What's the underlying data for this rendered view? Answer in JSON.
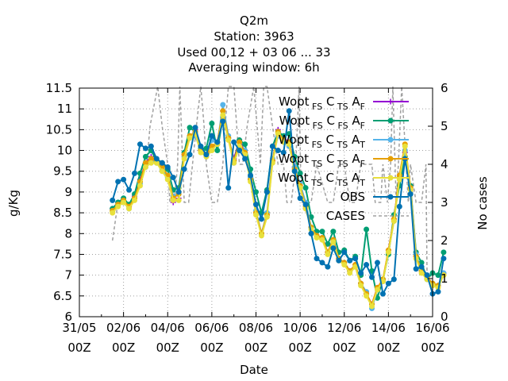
{
  "chart_data": {
    "type": "line",
    "title_lines": [
      "Q2m",
      "Station:     3963",
      "Used  00,12  + 03 06 ... 33",
      "Averaging window:  6h"
    ],
    "xlabel": "Date",
    "ylabel": "g/Kg",
    "y2label": "No cases",
    "xlim": [
      "2020-05-31 00:00",
      "2020-06-16 00:00"
    ],
    "ylim": [
      6,
      11.5
    ],
    "y2lim": [
      0,
      6
    ],
    "grid": true,
    "legend_position": "top-right",
    "x_ticks": [
      {
        "day": "31/05",
        "hour": "00Z"
      },
      {
        "day": "02/06",
        "hour": "00Z"
      },
      {
        "day": "04/06",
        "hour": "00Z"
      },
      {
        "day": "06/06",
        "hour": "00Z"
      },
      {
        "day": "08/06",
        "hour": "00Z"
      },
      {
        "day": "10/06",
        "hour": "00Z"
      },
      {
        "day": "12/06",
        "hour": "00Z"
      },
      {
        "day": "14/06",
        "hour": "00Z"
      },
      {
        "day": "16/06",
        "hour": "00Z"
      }
    ],
    "y_ticks": [
      "6",
      "6.5",
      "7",
      "7.5",
      "8",
      "8.5",
      "9",
      "9.5",
      "10",
      "10.5",
      "11",
      "11.5"
    ],
    "y2_ticks": [
      "0",
      "1",
      "2",
      "3",
      "4",
      "5",
      "6"
    ],
    "x_start_day": 1.5,
    "x_step_days": 0.25,
    "obs": [
      8.8,
      9.25,
      9.3,
      9.05,
      9.45,
      10.15,
      10.05,
      10.1,
      9.8,
      9.7,
      9.6,
      9.35,
      9.0,
      9.55,
      9.9,
      10.55,
      10.1,
      9.9,
      10.35,
      10.2,
      10.7,
      9.1,
      10.2,
      10.0,
      9.8,
      9.4,
      8.7,
      8.35,
      9.0,
      10.1,
      10.0,
      9.95,
      10.95,
      9.5,
      8.85,
      8.7,
      8.0,
      7.4,
      7.3,
      7.2,
      7.65,
      7.35,
      7.55,
      7.35,
      7.4,
      7.05,
      7.25,
      6.95,
      7.3,
      6.55,
      6.8,
      6.9,
      8.65,
      9.8,
      8.95,
      7.15,
      7.2,
      7.0,
      6.55,
      6.6,
      7.4
    ],
    "series_points": [
      {
        "name": "Wopt_FS C_TS A_F",
        "color": "#9400d3",
        "marker": "plus",
        "values": [
          8.6,
          8.75,
          8.8,
          8.65,
          8.9,
          9.3,
          9.7,
          9.85,
          9.75,
          9.6,
          9.4,
          8.75,
          8.85,
          9.9,
          10.3,
          10.5,
          10.0,
          9.85,
          10.05,
          10.2,
          10.95,
          10.3,
          9.8,
          10.25,
          9.95,
          9.3,
          8.5,
          8.0,
          8.45,
          9.75,
          10.5,
          10.3,
          10.2,
          9.6,
          9.15,
          8.6,
          8.15,
          7.95,
          7.9,
          7.55,
          7.85,
          7.4,
          7.3,
          7.1,
          7.25,
          6.8,
          6.55,
          6.3,
          6.7,
          6.85,
          7.6,
          8.35,
          9.35,
          9.95,
          9.05,
          7.45,
          7.1,
          6.95,
          6.8,
          6.75,
          7.05
        ]
      },
      {
        "name": "Wopt_FS C_FS A_F",
        "color": "#009e73",
        "marker": "plus",
        "values": [
          8.6,
          8.75,
          8.85,
          8.7,
          8.95,
          9.45,
          9.85,
          10.0,
          9.75,
          9.7,
          9.55,
          9.05,
          9.1,
          9.95,
          10.55,
          10.45,
          10.05,
          10.05,
          10.65,
          10.0,
          10.8,
          10.3,
          9.75,
          10.25,
          10.15,
          9.55,
          9.0,
          8.5,
          9.05,
          10.1,
          10.45,
          10.35,
          10.4,
          9.85,
          9.45,
          9.1,
          8.4,
          8.05,
          8.05,
          7.75,
          8.05,
          7.55,
          7.6,
          7.35,
          7.45,
          7.0,
          8.1,
          7.1,
          6.45,
          6.9,
          7.5,
          8.45,
          9.15,
          9.85,
          9.15,
          7.55,
          7.3,
          6.9,
          7.05,
          7.0,
          7.55
        ]
      },
      {
        "name": "Wopt_FS C_TS A_T",
        "color": "#56b4e9",
        "marker": "plus",
        "values": [
          8.55,
          8.7,
          8.75,
          8.6,
          8.85,
          9.2,
          9.6,
          9.75,
          9.7,
          9.55,
          9.35,
          8.9,
          8.95,
          9.85,
          10.35,
          10.35,
          10.0,
          9.9,
          10.25,
          10.15,
          11.1,
          10.35,
          9.7,
          10.1,
          10.0,
          9.35,
          8.55,
          8.0,
          8.5,
          9.8,
          10.35,
          10.2,
          10.1,
          9.6,
          9.2,
          8.75,
          8.15,
          7.95,
          7.9,
          7.55,
          7.8,
          7.4,
          7.3,
          7.1,
          7.2,
          6.8,
          6.6,
          6.2,
          6.65,
          6.85,
          7.55,
          8.3,
          9.35,
          10.0,
          9.1,
          7.5,
          7.1,
          6.95,
          6.8,
          6.75,
          7.05
        ]
      },
      {
        "name": "Wopt_TS C_TS A_F",
        "color": "#e69f00",
        "marker": "plus",
        "values": [
          8.55,
          8.7,
          8.8,
          8.65,
          8.85,
          9.25,
          9.7,
          9.8,
          9.75,
          9.6,
          9.4,
          8.85,
          8.95,
          9.9,
          10.35,
          10.45,
          10.0,
          9.9,
          10.1,
          10.2,
          10.95,
          10.3,
          9.75,
          10.2,
          9.95,
          9.3,
          8.5,
          8.0,
          8.45,
          9.75,
          10.45,
          10.25,
          10.2,
          9.55,
          9.15,
          8.65,
          8.15,
          7.95,
          7.9,
          7.55,
          7.85,
          7.4,
          7.3,
          7.1,
          7.25,
          6.8,
          6.55,
          6.3,
          6.7,
          6.9,
          7.6,
          8.35,
          9.4,
          10.15,
          9.1,
          7.45,
          7.1,
          6.95,
          6.8,
          6.75,
          7.0
        ]
      },
      {
        "name": "Wopt_TS C_TS A_T",
        "color": "#e8e03c",
        "marker": "plus",
        "values": [
          8.5,
          8.65,
          8.75,
          8.6,
          8.8,
          9.15,
          9.6,
          9.7,
          9.7,
          9.5,
          9.3,
          8.8,
          8.8,
          9.8,
          10.3,
          10.4,
          9.95,
          9.85,
          10.0,
          10.15,
          10.85,
          10.25,
          9.7,
          10.1,
          9.9,
          9.25,
          8.45,
          7.95,
          8.4,
          9.7,
          10.4,
          10.2,
          10.15,
          9.5,
          9.1,
          8.6,
          8.1,
          7.9,
          7.85,
          7.5,
          7.8,
          7.35,
          7.25,
          7.05,
          7.2,
          6.75,
          6.5,
          6.25,
          6.65,
          6.85,
          7.55,
          8.3,
          9.3,
          10.1,
          9.05,
          7.4,
          7.05,
          6.9,
          6.75,
          6.7,
          7.0
        ]
      },
      {
        "name": "OBS",
        "color": "#0072b2",
        "marker": "star"
      }
    ],
    "cases": {
      "name": "CASES",
      "color": "#a0a0a0",
      "x": [
        1.5,
        1.75,
        2.0,
        2.5,
        2.9,
        3.05,
        3.2,
        3.55,
        3.75,
        4.0,
        4.1,
        4.3,
        4.45,
        4.55,
        4.75,
        4.95,
        5.3,
        5.5,
        5.65,
        5.75,
        6.0,
        6.15,
        6.25,
        6.5,
        6.6,
        6.75,
        7.0,
        7.25,
        7.4,
        7.6,
        7.9,
        8.2,
        8.35,
        8.5,
        8.75,
        9.0,
        9.25,
        9.4,
        9.6,
        9.8,
        9.95,
        10.05,
        10.25,
        10.5,
        10.75,
        11.25,
        11.5,
        11.75,
        12.0,
        12.25,
        12.5,
        12.75,
        13.0,
        13.25,
        13.4,
        13.65,
        13.75,
        13.95,
        14.1,
        14.2,
        14.35,
        14.45,
        14.6,
        14.9,
        15.0,
        15.25,
        15.5,
        15.7,
        15.75
      ],
      "values": [
        2,
        3,
        3,
        3,
        4,
        4,
        5,
        6.2,
        5,
        4,
        3,
        3,
        4,
        6.2,
        3,
        3,
        5,
        6.2,
        5,
        4,
        3,
        3,
        3,
        4,
        5,
        6.2,
        6.2,
        4,
        4,
        5,
        6.2,
        4,
        6.2,
        6.2,
        5,
        4,
        4,
        3,
        3,
        4,
        6.2,
        3,
        3,
        3,
        4,
        3,
        3,
        4,
        4,
        3,
        3,
        4,
        4,
        4,
        3,
        3,
        4,
        3,
        4,
        6.2,
        3,
        4,
        6.2,
        3,
        4,
        3,
        3,
        4,
        1
      ]
    },
    "legend_labels": [
      {
        "base": "Wopt",
        "s1": "FS",
        "m1": "C",
        "s2": "TS",
        "m2": "A",
        "s3": "F"
      },
      {
        "base": "Wopt",
        "s1": "FS",
        "m1": "C",
        "s2": "FS",
        "m2": "A",
        "s3": "F"
      },
      {
        "base": "Wopt",
        "s1": "FS",
        "m1": "C",
        "s2": "TS",
        "m2": "A",
        "s3": "T"
      },
      {
        "base": "Wopt",
        "s1": "TS",
        "m1": "C",
        "s2": "TS",
        "m2": "A",
        "s3": "F"
      },
      {
        "base": "Wopt",
        "s1": "TS",
        "m1": "C",
        "s2": "TS",
        "m2": "A",
        "s3": "T"
      }
    ],
    "legend_obs": "OBS",
    "legend_cases": "CASES"
  }
}
